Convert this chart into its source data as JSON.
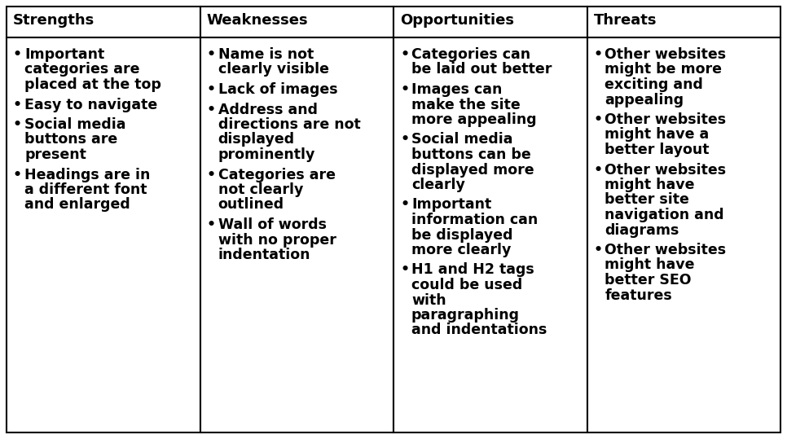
{
  "headers": [
    "Strengths",
    "Weaknesses",
    "Opportunities",
    "Threats"
  ],
  "content": [
    [
      [
        "Important",
        "categories are",
        "placed at the top"
      ],
      [
        "Easy to navigate"
      ],
      [
        "Social media",
        "buttons are",
        "present"
      ],
      [
        "Headings are in",
        "a different font",
        "and enlarged"
      ]
    ],
    [
      [
        "Name is not",
        "clearly visible"
      ],
      [
        "Lack of images"
      ],
      [
        "Address and",
        "directions are not",
        "displayed",
        "prominently"
      ],
      [
        "Categories are",
        "not clearly",
        "outlined"
      ],
      [
        "Wall of words",
        "with no proper",
        "indentation"
      ]
    ],
    [
      [
        "Categories can",
        "be laid out better"
      ],
      [
        "Images can",
        "make the site",
        "more appealing"
      ],
      [
        "Social media",
        "buttons can be",
        "displayed more",
        "clearly"
      ],
      [
        "Important",
        "information can",
        "be displayed",
        "more clearly"
      ],
      [
        "H1 and H2 tags",
        "could be used",
        "with",
        "paragraphing",
        "and indentations"
      ]
    ],
    [
      [
        "Other websites",
        "might be more",
        "exciting and",
        "appealing"
      ],
      [
        "Other websites",
        "might have a",
        "better layout"
      ],
      [
        "Other websites",
        "might have",
        "better site",
        "navigation and",
        "diagrams"
      ],
      [
        "Other websites",
        "might have",
        "better SEO",
        "features"
      ]
    ]
  ],
  "bg_color": "#ffffff",
  "border_color": "#000000",
  "header_text_color": "#000000",
  "body_text_color": "#000000",
  "bullet": "•",
  "header_fontsize": 13,
  "body_fontsize": 12.5,
  "fig_width": 9.66,
  "fig_height": 5.39,
  "dpi": 100
}
